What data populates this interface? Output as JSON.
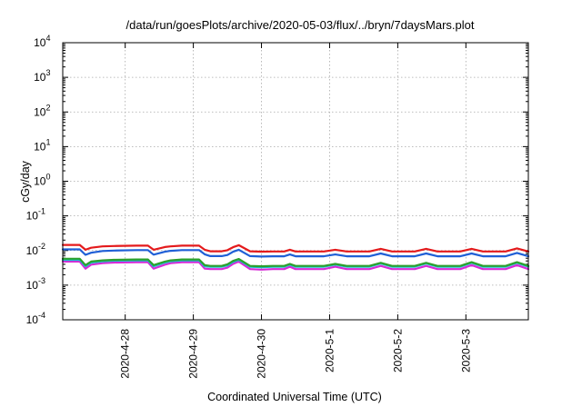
{
  "chart_data": {
    "type": "line",
    "title": "/data/run/goesPlots/archive/2020-05-03/flux/../bryn/7daysMars.plot",
    "xlabel": "Coordinated Universal Time (UTC)",
    "ylabel": "cGy/day",
    "yscale": "log",
    "ylim": [
      0.0001,
      10000
    ],
    "xlim": [
      "2020-04-27 02:00",
      "2020-05-03 22:00"
    ],
    "grid": true,
    "y_ticks": [
      {
        "base": "10",
        "exp": "-4",
        "value": 0.0001
      },
      {
        "base": "10",
        "exp": "-3",
        "value": 0.001
      },
      {
        "base": "10",
        "exp": "-2",
        "value": 0.01
      },
      {
        "base": "10",
        "exp": "-1",
        "value": 0.1
      },
      {
        "base": "10",
        "exp": "0",
        "value": 1
      },
      {
        "base": "10",
        "exp": "1",
        "value": 10
      },
      {
        "base": "10",
        "exp": "2",
        "value": 100
      },
      {
        "base": "10",
        "exp": "3",
        "value": 1000
      },
      {
        "base": "10",
        "exp": "4",
        "value": 10000
      }
    ],
    "x_ticks": [
      {
        "label": "2020-4-28",
        "value": "2020-04-28 00:00"
      },
      {
        "label": "2020-4-29",
        "value": "2020-04-29 00:00"
      },
      {
        "label": "2020-4-30",
        "value": "2020-04-30 00:00"
      },
      {
        "label": "2020-5-1",
        "value": "2020-05-01 00:00"
      },
      {
        "label": "2020-5-2",
        "value": "2020-05-02 00:00"
      },
      {
        "label": "2020-5-3",
        "value": "2020-05-03 00:00"
      }
    ],
    "x": [
      "2020-04-27 02:00",
      "2020-04-27 08:00",
      "2020-04-27 10:00",
      "2020-04-27 12:00",
      "2020-04-27 16:00",
      "2020-04-27 20:00",
      "2020-04-28 04:00",
      "2020-04-28 08:00",
      "2020-04-28 10:00",
      "2020-04-28 14:00",
      "2020-04-28 16:00",
      "2020-04-28 20:00",
      "2020-04-29 02:00",
      "2020-04-29 04:00",
      "2020-04-29 06:00",
      "2020-04-29 10:00",
      "2020-04-29 12:00",
      "2020-04-29 14:00",
      "2020-04-29 16:00",
      "2020-04-29 20:00",
      "2020-04-30 00:00",
      "2020-04-30 04:00",
      "2020-04-30 08:00",
      "2020-04-30 10:00",
      "2020-04-30 12:00",
      "2020-04-30 16:00",
      "2020-04-30 22:00",
      "2020-05-01 02:00",
      "2020-05-01 06:00",
      "2020-05-01 10:00",
      "2020-05-01 14:00",
      "2020-05-01 18:00",
      "2020-05-01 22:00",
      "2020-05-02 02:00",
      "2020-05-02 06:00",
      "2020-05-02 10:00",
      "2020-05-02 14:00",
      "2020-05-02 18:00",
      "2020-05-02 22:00",
      "2020-05-03 02:00",
      "2020-05-03 06:00",
      "2020-05-03 10:00",
      "2020-05-03 14:00",
      "2020-05-03 18:00",
      "2020-05-03 22:00"
    ],
    "series": [
      {
        "color": "#e41a1c",
        "values": [
          0.0145,
          0.0145,
          0.0105,
          0.012,
          0.0132,
          0.0135,
          0.0138,
          0.0138,
          0.0105,
          0.0126,
          0.0132,
          0.0138,
          0.0138,
          0.0105,
          0.0095,
          0.0095,
          0.0102,
          0.0125,
          0.0142,
          0.0095,
          0.0093,
          0.0094,
          0.0094,
          0.0105,
          0.0094,
          0.0094,
          0.0094,
          0.0105,
          0.0094,
          0.0094,
          0.0094,
          0.0112,
          0.0094,
          0.0094,
          0.0094,
          0.0112,
          0.0094,
          0.0094,
          0.0094,
          0.0112,
          0.0094,
          0.0094,
          0.0094,
          0.0115,
          0.0094
        ]
      },
      {
        "color": "#1f5fd6",
        "values": [
          0.0108,
          0.0108,
          0.0075,
          0.0086,
          0.0097,
          0.01,
          0.0103,
          0.0103,
          0.0076,
          0.0092,
          0.0098,
          0.0103,
          0.0103,
          0.0078,
          0.0069,
          0.0069,
          0.0074,
          0.0092,
          0.0105,
          0.0069,
          0.0067,
          0.0068,
          0.0068,
          0.0077,
          0.0068,
          0.0068,
          0.0068,
          0.0077,
          0.0068,
          0.0068,
          0.0068,
          0.0082,
          0.0068,
          0.0068,
          0.0068,
          0.0082,
          0.0068,
          0.0068,
          0.0068,
          0.0082,
          0.0068,
          0.0068,
          0.0068,
          0.0085,
          0.0068
        ]
      },
      {
        "color": "#2ca02c",
        "values": [
          0.0058,
          0.0058,
          0.0038,
          0.0048,
          0.0052,
          0.0054,
          0.0055,
          0.0055,
          0.0038,
          0.0048,
          0.0052,
          0.0055,
          0.0055,
          0.0038,
          0.0036,
          0.0036,
          0.004,
          0.005,
          0.0057,
          0.0036,
          0.0035,
          0.0036,
          0.0036,
          0.0041,
          0.0036,
          0.0036,
          0.0036,
          0.0041,
          0.0036,
          0.0036,
          0.0036,
          0.0044,
          0.0036,
          0.0036,
          0.0036,
          0.0044,
          0.0036,
          0.0036,
          0.0036,
          0.0046,
          0.0036,
          0.0036,
          0.0036,
          0.0046,
          0.0036
        ]
      },
      {
        "color": "#17becf",
        "values": [
          0.0054,
          0.0054,
          0.0035,
          0.0045,
          0.0049,
          0.0051,
          0.0052,
          0.0052,
          0.0035,
          0.0045,
          0.0049,
          0.0052,
          0.0052,
          0.0035,
          0.0034,
          0.0034,
          0.0037,
          0.0047,
          0.0054,
          0.0034,
          0.0033,
          0.0034,
          0.0034,
          0.0039,
          0.0034,
          0.0034,
          0.0034,
          0.0039,
          0.0034,
          0.0034,
          0.0034,
          0.0042,
          0.0034,
          0.0034,
          0.0034,
          0.0042,
          0.0034,
          0.0034,
          0.0034,
          0.0044,
          0.0034,
          0.0034,
          0.0034,
          0.0044,
          0.0034
        ]
      },
      {
        "color": "#d62ad6",
        "values": [
          0.0048,
          0.0048,
          0.003,
          0.0039,
          0.0043,
          0.0045,
          0.0046,
          0.0046,
          0.003,
          0.0039,
          0.0043,
          0.0046,
          0.0046,
          0.003,
          0.0029,
          0.0029,
          0.0032,
          0.0041,
          0.0048,
          0.0029,
          0.0028,
          0.0029,
          0.0029,
          0.0034,
          0.0029,
          0.0029,
          0.0029,
          0.0034,
          0.0029,
          0.0029,
          0.0029,
          0.0036,
          0.0029,
          0.0029,
          0.0029,
          0.0036,
          0.0029,
          0.0029,
          0.0029,
          0.0038,
          0.0029,
          0.0029,
          0.0029,
          0.0038,
          0.0029
        ]
      }
    ]
  }
}
